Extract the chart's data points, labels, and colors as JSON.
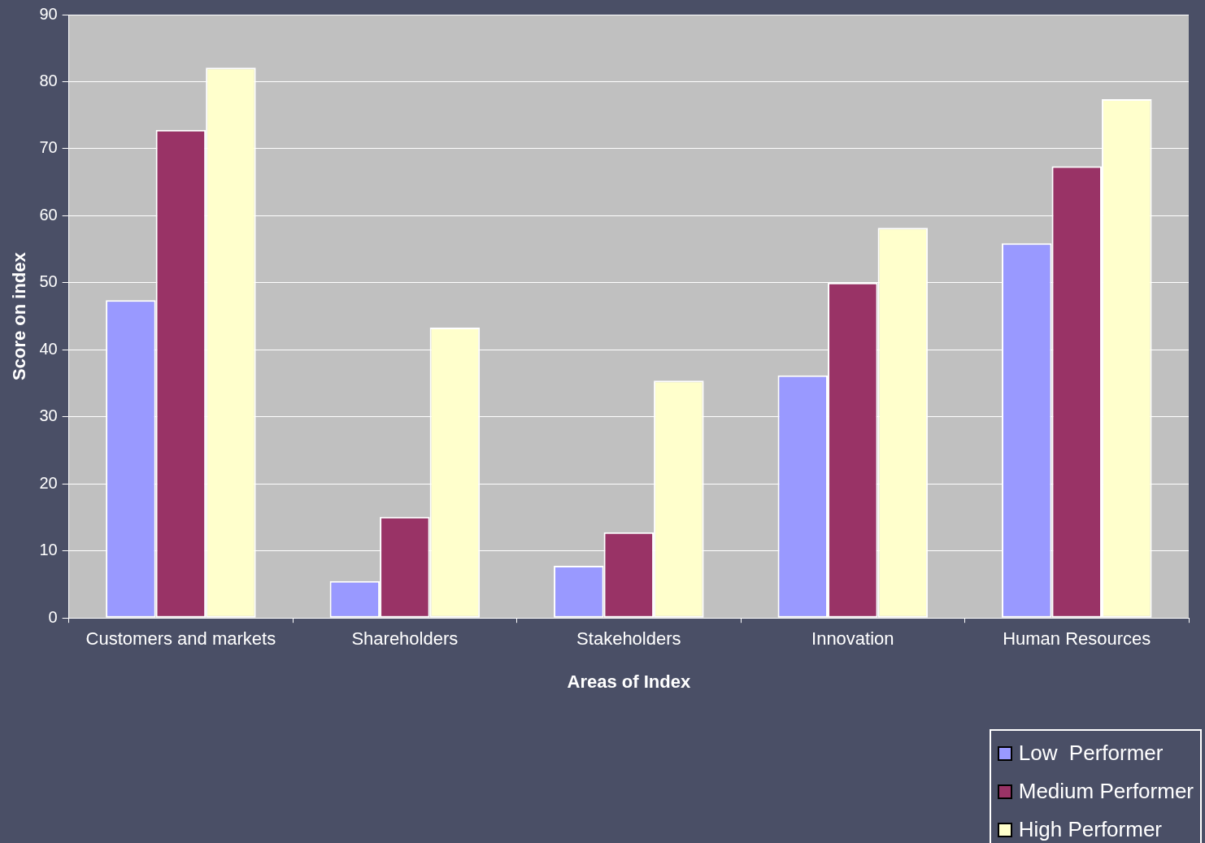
{
  "chart_data": {
    "type": "bar",
    "xlabel": "Areas of Index",
    "ylabel": "Score on index",
    "categories": [
      "Customers and markets",
      "Shareholders",
      "Stakeholders",
      "Innovation",
      "Human Resources"
    ],
    "series": [
      {
        "name": "Low  Performer",
        "color": "#9999ff",
        "values": [
          47.4,
          5.5,
          7.8,
          36.2,
          55.9
        ]
      },
      {
        "name": "Medium Performer",
        "color": "#993366",
        "values": [
          72.8,
          15.1,
          12.8,
          50.0,
          67.4
        ]
      },
      {
        "name": "High Performer",
        "color": "#ffffcc",
        "values": [
          82.1,
          43.3,
          35.4,
          58.2,
          77.4
        ]
      }
    ],
    "ylim": [
      0,
      90
    ],
    "yticks": [
      0,
      10,
      20,
      30,
      40,
      50,
      60,
      70,
      80,
      90
    ],
    "grid": "y",
    "legend": "bottom right"
  }
}
